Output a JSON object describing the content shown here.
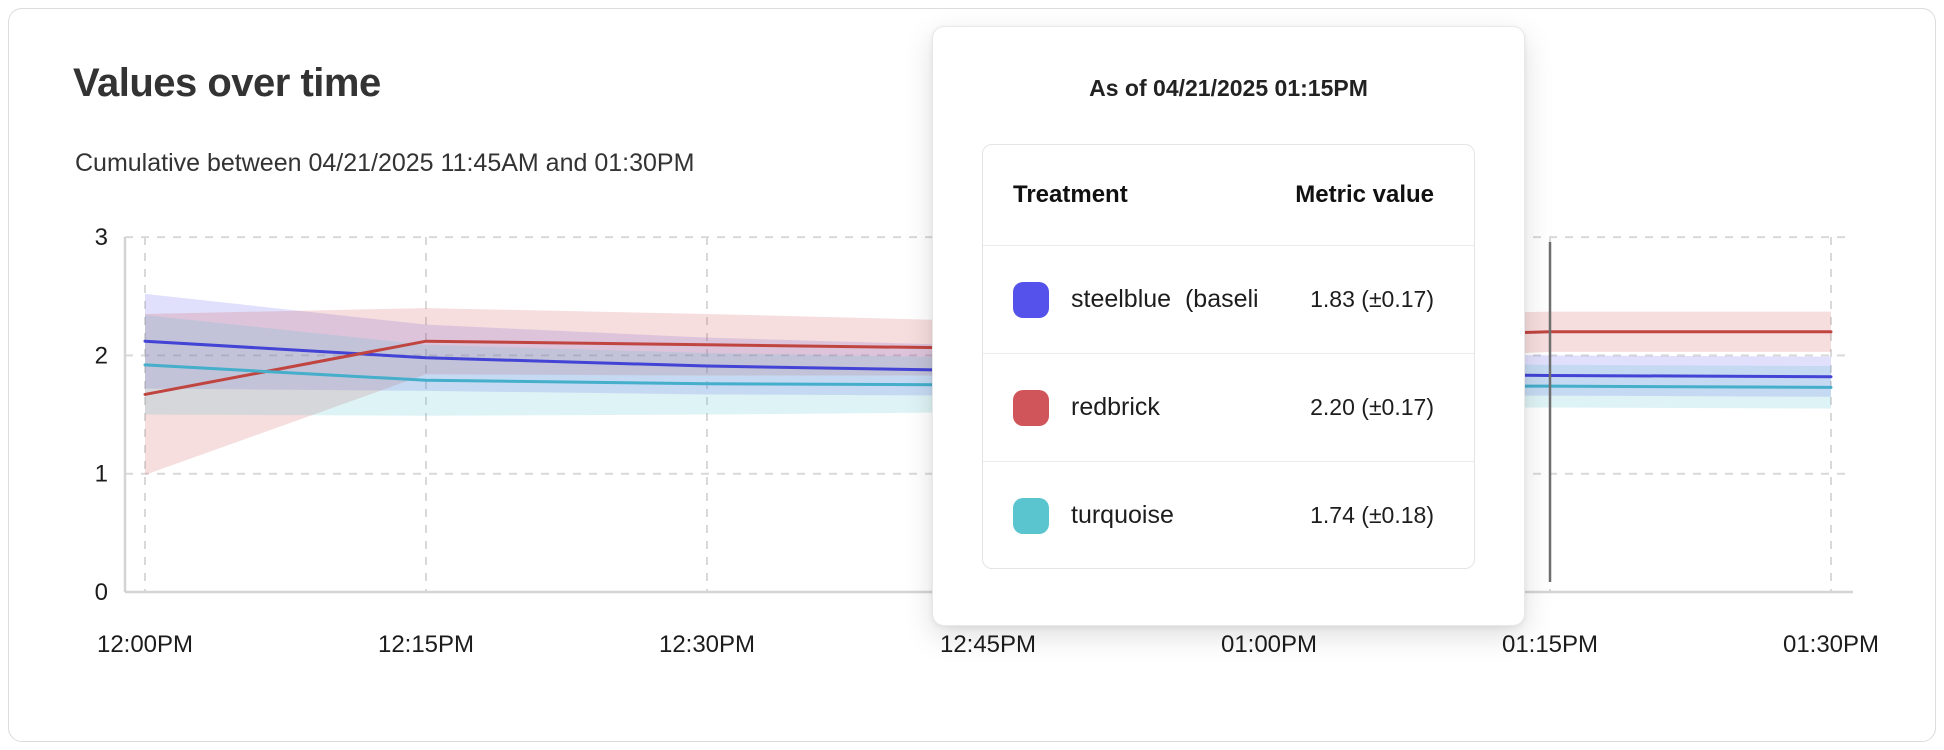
{
  "page": {
    "title": "Values over time",
    "subtitle": "Cumulative between 04/21/2025 11:45AM and 01:30PM"
  },
  "tooltip": {
    "title": "As of 04/21/2025 01:15PM",
    "columns": [
      "Treatment",
      "Metric value"
    ],
    "rows": [
      {
        "name": "steelblue  (baseli",
        "swatch_color": "#5552ec",
        "value": "1.83 (±0.17)"
      },
      {
        "name": "redbrick",
        "swatch_color": "#d0555a",
        "value": "2.20 (±0.17)"
      },
      {
        "name": "turquoise",
        "swatch_color": "#5bc5cf",
        "value": "1.74 (±0.18)"
      }
    ]
  },
  "chart_data": {
    "type": "line",
    "title": "Values over time",
    "subtitle": "Cumulative between 04/21/2025 11:45AM and 01:30PM",
    "x_tick_labels": [
      "12:00PM",
      "12:15PM",
      "12:30PM",
      "12:45PM",
      "01:00PM",
      "01:15PM",
      "01:30PM"
    ],
    "y_ticks": [
      0,
      1,
      2,
      3
    ],
    "ylim": [
      0,
      3
    ],
    "grid": "dashed",
    "legend_position": "none",
    "hover": {
      "index": 5,
      "label": "01:15PM",
      "line_color": "#6f6f6f"
    },
    "axis_color": "#d4d4d4",
    "grid_color": "#d9d9d9",
    "series": [
      {
        "name": "steelblue (baseline)",
        "line_color": "#4343d6",
        "band_color": "#5552ec",
        "band_opacity": 0.18,
        "values": [
          2.12,
          1.98,
          1.91,
          1.87,
          1.85,
          1.83,
          1.82
        ],
        "band_low": [
          1.72,
          1.7,
          1.67,
          1.66,
          1.66,
          1.66,
          1.65
        ],
        "band_high": [
          2.52,
          2.26,
          2.15,
          2.08,
          2.04,
          2.0,
          1.99
        ]
      },
      {
        "name": "redbrick",
        "line_color": "#c04540",
        "band_color": "#d0555a",
        "band_opacity": 0.2,
        "values": [
          1.67,
          2.12,
          2.09,
          2.06,
          2.13,
          2.2,
          2.2
        ],
        "band_low": [
          0.99,
          1.84,
          1.83,
          1.83,
          1.93,
          2.03,
          2.03
        ],
        "band_high": [
          2.35,
          2.4,
          2.35,
          2.29,
          2.33,
          2.37,
          2.37
        ]
      },
      {
        "name": "turquoise",
        "line_color": "#44aecb",
        "band_color": "#5bc5cf",
        "band_opacity": 0.2,
        "values": [
          1.92,
          1.79,
          1.76,
          1.75,
          1.74,
          1.74,
          1.73
        ],
        "band_low": [
          1.5,
          1.49,
          1.5,
          1.52,
          1.54,
          1.56,
          1.55
        ],
        "band_high": [
          2.34,
          2.09,
          2.02,
          1.98,
          1.94,
          1.92,
          1.91
        ]
      }
    ]
  }
}
